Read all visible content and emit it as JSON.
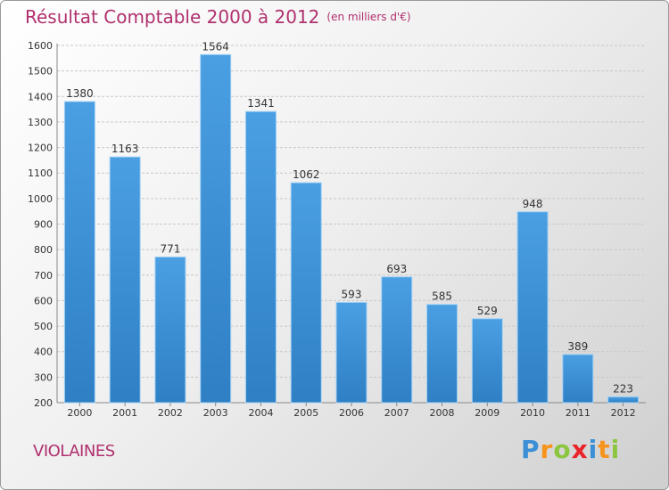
{
  "title": "Résultat Comptable 2000 à 2012",
  "subtitle": "(en milliers d'€)",
  "commune": "VIOLAINES",
  "logo": {
    "text": "Proxiti",
    "letters": [
      "P",
      "r",
      "o",
      "x",
      "i",
      "t",
      "i"
    ],
    "colors": [
      "#3a8fd6",
      "#f7941d",
      "#8cc63f",
      "#e8232a",
      "#3a8fd6",
      "#f7941d",
      "#8cc63f"
    ]
  },
  "colors": {
    "bar": "#4a9fe2",
    "bar_dark": "#2f7fc4",
    "title": "#b0306e"
  },
  "chart_data": {
    "type": "bar",
    "categories": [
      "2000",
      "2001",
      "2002",
      "2003",
      "2004",
      "2005",
      "2006",
      "2007",
      "2008",
      "2009",
      "2010",
      "2011",
      "2012"
    ],
    "values": [
      1380,
      1163,
      771,
      1564,
      1341,
      1062,
      593,
      693,
      585,
      529,
      948,
      389,
      223
    ],
    "ylim": [
      200,
      1600
    ],
    "yticks": [
      200,
      300,
      400,
      500,
      600,
      700,
      800,
      900,
      1000,
      1100,
      1200,
      1300,
      1400,
      1500,
      1600
    ],
    "grid": true
  }
}
